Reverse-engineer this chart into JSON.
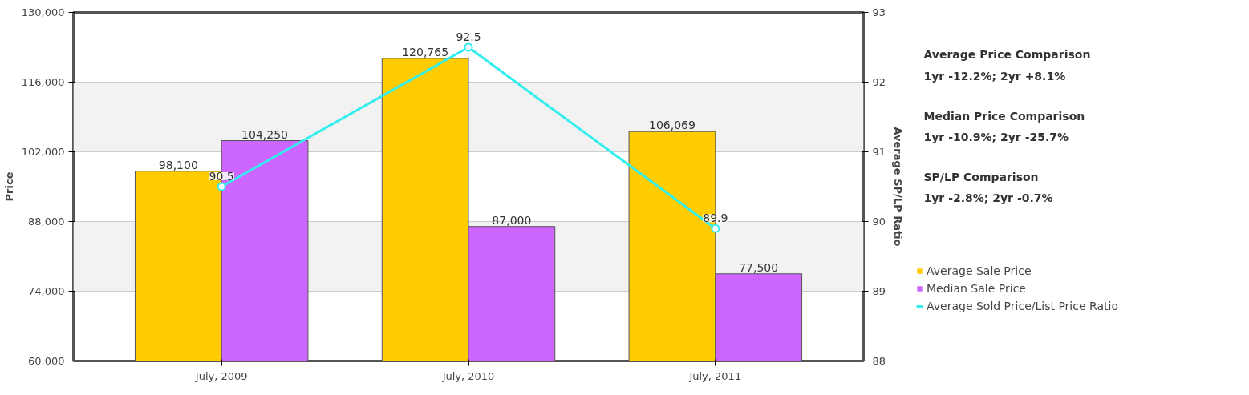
{
  "chart_data": {
    "type": "bar",
    "ylabel": "Price",
    "y2label": "Average SP/LP Ratio",
    "categories": [
      "July, 2009",
      "July, 2010",
      "July, 2011"
    ],
    "series": [
      {
        "name": "Average Sale Price",
        "color": "#ffcc00",
        "values": [
          98100,
          120765,
          106069
        ],
        "value_labels": [
          "98,100",
          "120,765",
          "106,069"
        ]
      },
      {
        "name": "Median Sale Price",
        "color": "#cc66ff",
        "values": [
          104250,
          87000,
          77500
        ],
        "value_labels": [
          "104,250",
          "87,000",
          "77,500"
        ]
      },
      {
        "name": "Average Sold Price/List Price Ratio",
        "type": "line",
        "axis": "y2",
        "color": "#33eeee",
        "values": [
          90.5,
          92.5,
          89.9
        ],
        "value_labels": [
          "90.5",
          "92.5",
          "89.9"
        ]
      }
    ],
    "ylim": [
      60000,
      130000
    ],
    "yticks": [
      {
        "value": 60000,
        "label": "60,000"
      },
      {
        "value": 74000,
        "label": "74,000"
      },
      {
        "value": 88000,
        "label": "88,000"
      },
      {
        "value": 102000,
        "label": "102,000"
      },
      {
        "value": 116000,
        "label": "116,000"
      },
      {
        "value": 130000,
        "label": "130,000"
      }
    ],
    "y2lim": [
      88,
      93
    ],
    "y2ticks": [
      88,
      89,
      90,
      91,
      92,
      93
    ],
    "grid": "y",
    "legend": "right",
    "marker": "circle",
    "annotations": [
      "Average Price Comparison",
      "1yr -12.2%; 2yr +8.1%",
      "Median Price Comparison",
      "1yr -10.9%; 2yr -25.7%",
      "SP/LP Comparison",
      "1yr -2.8%; 2yr -0.7%"
    ]
  }
}
